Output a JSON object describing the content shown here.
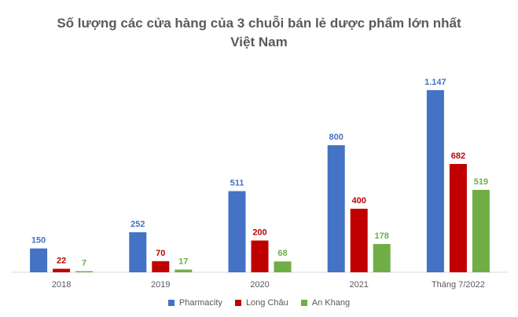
{
  "chart_data": {
    "type": "bar",
    "title_line1": "Số lượng các cửa hàng của 3 chuỗi bán lẻ dược phẩm lớn nhất",
    "title_line2": "Việt Nam",
    "categories": [
      "2018",
      "2019",
      "2020",
      "2021",
      "Tháng 7/2022"
    ],
    "series": [
      {
        "name": "Pharmacity",
        "color": "#4472C4",
        "values": [
          150,
          252,
          511,
          800,
          1147
        ],
        "labels": [
          "150",
          "252",
          "511",
          "800",
          "1.147"
        ]
      },
      {
        "name": "Long Châu",
        "color": "#C00000",
        "values": [
          22,
          70,
          200,
          400,
          682
        ],
        "labels": [
          "22",
          "70",
          "200",
          "400",
          "682"
        ]
      },
      {
        "name": "An Khang",
        "color": "#70AD47",
        "values": [
          7,
          17,
          68,
          178,
          519
        ],
        "labels": [
          "7",
          "17",
          "68",
          "178",
          "519"
        ]
      }
    ],
    "ylim": [
      0,
      1250
    ],
    "grid": false,
    "legend_position": "bottom"
  }
}
